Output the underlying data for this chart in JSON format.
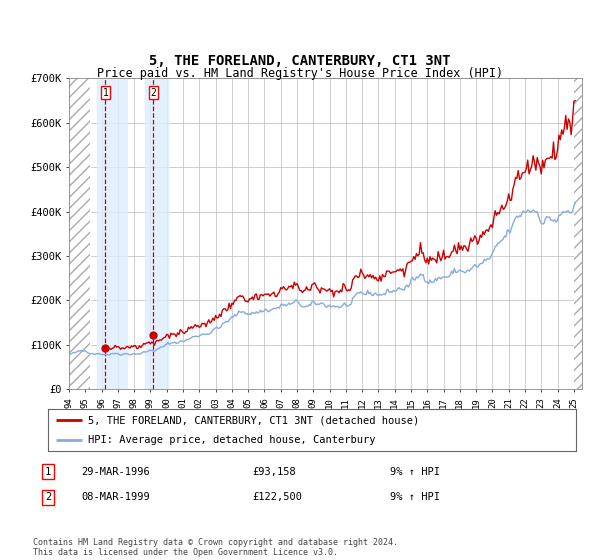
{
  "title": "5, THE FORELAND, CANTERBURY, CT1 3NT",
  "subtitle": "Price paid vs. HM Land Registry's House Price Index (HPI)",
  "title_fontsize": 10,
  "subtitle_fontsize": 8.5,
  "ylim": [
    0,
    700000
  ],
  "yticks": [
    0,
    100000,
    200000,
    300000,
    400000,
    500000,
    600000,
    700000
  ],
  "ytick_labels": [
    "£0",
    "£100K",
    "£200K",
    "£300K",
    "£400K",
    "£500K",
    "£600K",
    "£700K"
  ],
  "x_start_year": 1994,
  "x_end_year": 2025,
  "transaction1_year": 1996.24,
  "transaction1_price": 93158,
  "transaction2_year": 1999.18,
  "transaction2_price": 122500,
  "line_color_price": "#cc0000",
  "line_color_hpi": "#88aadd",
  "marker_color": "#cc0000",
  "shade_color": "#ddeeff",
  "grid_color": "#bbbbbb",
  "background_color": "#ffffff",
  "legend_line1": "5, THE FORELAND, CANTERBURY, CT1 3NT (detached house)",
  "legend_line2": "HPI: Average price, detached house, Canterbury",
  "table_row1": [
    "1",
    "29-MAR-1996",
    "£93,158",
    "9% ↑ HPI"
  ],
  "table_row2": [
    "2",
    "08-MAR-1999",
    "£122,500",
    "9% ↑ HPI"
  ],
  "footnote": "Contains HM Land Registry data © Crown copyright and database right 2024.\nThis data is licensed under the Open Government Licence v3.0."
}
